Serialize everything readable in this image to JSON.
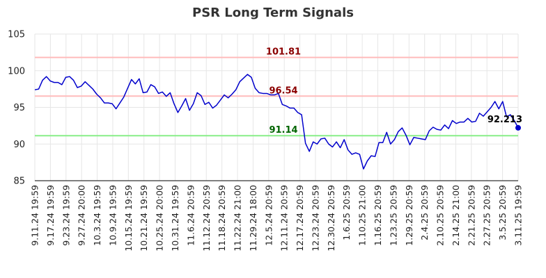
{
  "chart_data": {
    "type": "line",
    "title": "PSR Long Term Signals",
    "ylim": [
      85,
      105
    ],
    "yticks": [
      85,
      90,
      95,
      100,
      105
    ],
    "grid": true,
    "x_tick_labels": [
      "9.11.24 19:59",
      "9.17.24 19:59",
      "9.23.24 19:59",
      "9.27.24 20:00",
      "10.3.24 19:59",
      "10.9.24 19:59",
      "10.15.24 19:59",
      "10.21.24 19:59",
      "10.25.24 20:00",
      "10.31.24 19:59",
      "11.6.24 20:59",
      "11.12.24 20:59",
      "11.18.24 20:59",
      "11.22.24 21:00",
      "11.29.24 18:00",
      "12.5.24 20:59",
      "12.11.24 20:59",
      "12.17.24 20:59",
      "12.23.24 20:59",
      "12.30.24 20:59",
      "1.6.25 20:59",
      "1.10.25 21:00",
      "1.16.25 20:59",
      "1.23.25 20:59",
      "1.29.25 20:59",
      "2.4.25 20:59",
      "2.10.25 20:59",
      "2.14.25 21:00",
      "2.21.25 20:59",
      "2.27.25 20:59",
      "3.5.25 20:59",
      "3.11.25 19:59"
    ],
    "series": [
      {
        "color": "#0000cc",
        "values": [
          97.4,
          97.5,
          98.7,
          99.2,
          98.6,
          98.4,
          98.4,
          98.1,
          99.1,
          99.2,
          98.7,
          97.7,
          97.9,
          98.5,
          98.0,
          97.5,
          96.8,
          96.3,
          95.6,
          95.6,
          95.5,
          94.8,
          95.6,
          96.4,
          97.6,
          98.8,
          98.2,
          98.9,
          97.0,
          97.1,
          98.1,
          97.8,
          96.9,
          97.1,
          96.5,
          97.0,
          95.5,
          94.3,
          95.2,
          96.2,
          94.6,
          95.5,
          97.0,
          96.6,
          95.4,
          95.7,
          94.9,
          95.3,
          96.0,
          96.7,
          96.3,
          96.8,
          97.4,
          98.5,
          99.0,
          99.5,
          99.1,
          97.6,
          97.0,
          96.9,
          96.9,
          96.7,
          96.7,
          96.9,
          95.4,
          95.2,
          94.9,
          94.9,
          94.3,
          94.0,
          90.1,
          89.0,
          90.3,
          90.0,
          90.7,
          90.8,
          90.0,
          89.6,
          90.3,
          89.5,
          90.6,
          89.2,
          88.6,
          88.8,
          88.6,
          86.6,
          87.7,
          88.4,
          88.3,
          90.2,
          90.2,
          91.6,
          90.0,
          90.6,
          91.7,
          92.2,
          91.2,
          89.9,
          90.9,
          90.8,
          90.7,
          90.6,
          91.8,
          92.3,
          92.0,
          91.9,
          92.6,
          92.1,
          93.2,
          92.8,
          93.0,
          93.0,
          93.5,
          93.0,
          93.1,
          94.2,
          93.8,
          94.4,
          95.0,
          95.8,
          94.8,
          95.8,
          93.7,
          94.0,
          93.2,
          92.213
        ]
      }
    ],
    "horizontal_lines": [
      {
        "value": 101.81,
        "label": "101.81",
        "line_color": "#ffbbbb",
        "label_color": "#8b0000"
      },
      {
        "value": 96.54,
        "label": "96.54",
        "line_color": "#ffbbbb",
        "label_color": "#8b0000"
      },
      {
        "value": 91.14,
        "label": "91.14",
        "line_color": "#88ee88",
        "label_color": "#006400"
      }
    ],
    "last_value": 92.213,
    "last_label": "92.213"
  }
}
